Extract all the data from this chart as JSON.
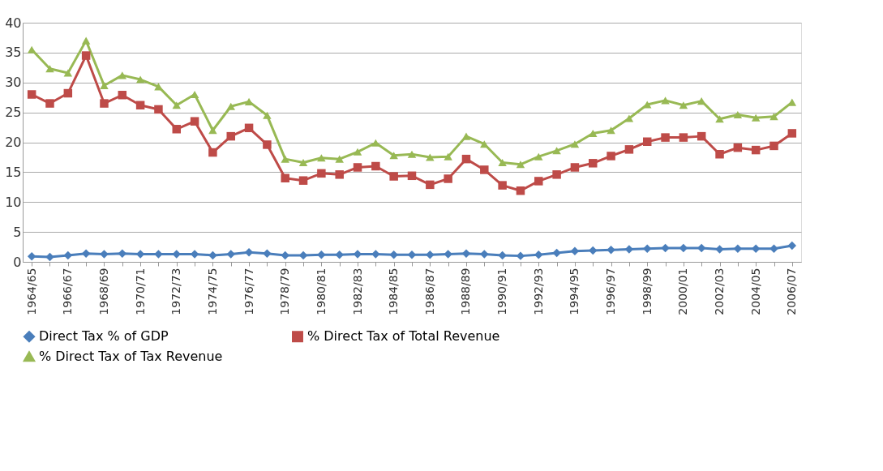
{
  "chart_data": {
    "type": "line",
    "categories": [
      "1964/65",
      null,
      "1966/67",
      null,
      "1968/69",
      null,
      "1970/71",
      null,
      "1972/73",
      null,
      "1974/75",
      null,
      "1976/77",
      null,
      "1978/79",
      null,
      "1980/81",
      null,
      "1982/83",
      null,
      "1984/85",
      null,
      "1986/87",
      null,
      "1988/89",
      null,
      "1990/91",
      null,
      "1992/93",
      null,
      "1994/95",
      null,
      "1996/97",
      null,
      "1998/99",
      null,
      "2000/01",
      null,
      "2002/03",
      null,
      "2004/05",
      null,
      "2006/07"
    ],
    "series": [
      {
        "name": "Direct Tax % of GDP",
        "color": "#4a7ebb",
        "marker": "diamond",
        "values": [
          0.9,
          0.8,
          1.1,
          1.4,
          1.3,
          1.4,
          1.3,
          1.3,
          1.3,
          1.3,
          1.1,
          1.3,
          1.6,
          1.4,
          1.1,
          1.1,
          1.2,
          1.2,
          1.3,
          1.3,
          1.2,
          1.2,
          1.2,
          1.3,
          1.4,
          1.3,
          1.1,
          1.0,
          1.2,
          1.5,
          1.8,
          1.9,
          2.0,
          2.1,
          2.2,
          2.3,
          2.3,
          2.3,
          2.1,
          2.2,
          2.2,
          2.2,
          2.7
        ]
      },
      {
        "name": "% Direct Tax of Total Revenue",
        "color": "#be4b48",
        "marker": "square",
        "values": [
          28,
          26.5,
          28.2,
          34.5,
          26.5,
          27.9,
          26.2,
          25.5,
          22.2,
          23.5,
          18.3,
          21,
          22.4,
          19.6,
          14,
          13.6,
          14.8,
          14.6,
          15.8,
          16,
          14.3,
          14.4,
          12.9,
          13.9,
          17.2,
          15.4,
          12.8,
          11.9,
          13.5,
          14.6,
          15.8,
          16.5,
          17.7,
          18.8,
          20.1,
          20.8,
          20.8,
          21,
          18,
          19.1,
          18.7,
          19.4,
          21.5
        ]
      },
      {
        "name": "% Direct Tax of Tax Revenue",
        "color": "#98b954",
        "marker": "triangle",
        "values": [
          35.5,
          32.3,
          31.6,
          37,
          29.5,
          31.2,
          30.5,
          29.3,
          26.2,
          28,
          22,
          26,
          26.8,
          24.5,
          17.2,
          16.6,
          17.4,
          17.2,
          18.4,
          19.9,
          17.8,
          18,
          17.5,
          17.6,
          21,
          19.7,
          16.6,
          16.3,
          17.6,
          18.6,
          19.7,
          21.5,
          22,
          24,
          26.3,
          27,
          26.2,
          26.9,
          23.9,
          24.6,
          24.1,
          24.3,
          26.7
        ]
      }
    ],
    "ylim": [
      0,
      40
    ],
    "yticks": [
      0,
      5,
      10,
      15,
      20,
      25,
      30,
      35,
      40
    ],
    "grid": "y",
    "legend": "bottom",
    "line_style": "solid"
  }
}
